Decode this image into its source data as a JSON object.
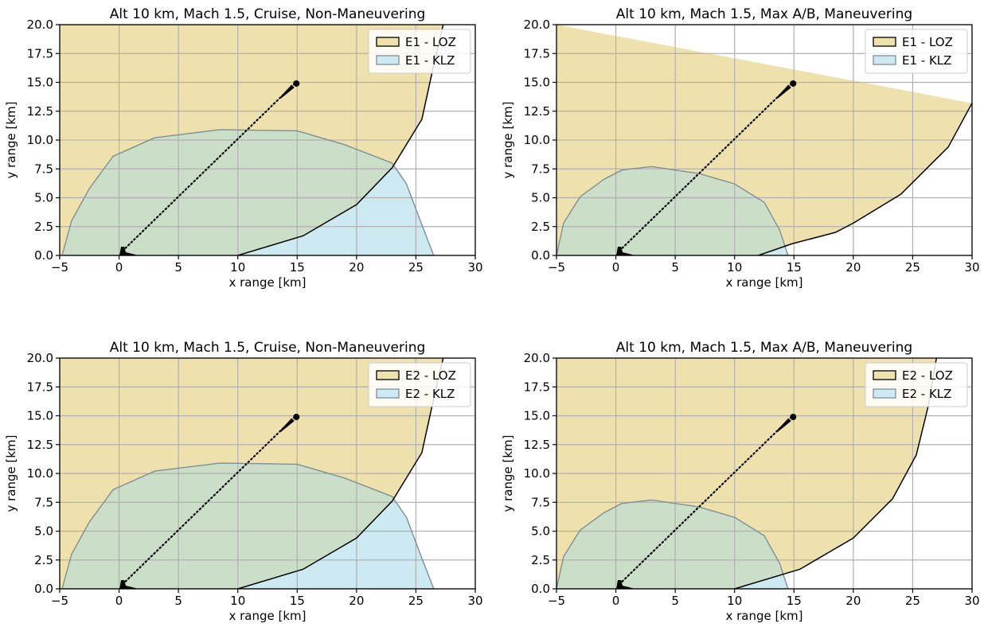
{
  "colors": {
    "loz_fill": "#efe1ad",
    "loz_edge": "#000000",
    "klz_fill": "#cde9f1",
    "klz_edge": "#7f8f95",
    "overlap_fill": "#cadec8",
    "grid": "#b0b0b0",
    "trajectory": "#000000"
  },
  "chart_data": [
    {
      "type": "area",
      "title": "Alt 10 km, Mach 1.5, Cruise, Non-Maneuvering",
      "xlabel": "x range [km]",
      "ylabel": "y range [km]",
      "xlim": [
        -5,
        30
      ],
      "ylim": [
        0,
        20
      ],
      "xticks": [
        -5,
        0,
        5,
        10,
        15,
        20,
        25,
        30
      ],
      "xtick_labels": [
        "−5",
        "0",
        "5",
        "10",
        "15",
        "20",
        "25",
        "30"
      ],
      "yticks": [
        0,
        2.5,
        5,
        7.5,
        10,
        12.5,
        15,
        17.5,
        20
      ],
      "ytick_labels": [
        "0.0",
        "2.5",
        "5.0",
        "7.5",
        "10.0",
        "12.5",
        "15.0",
        "17.5",
        "20.0"
      ],
      "grid": true,
      "legend_position": "top-right",
      "series": [
        {
          "name": "E1 - LOZ",
          "role": "loz",
          "inner_boundary": [
            [
              10,
              0
            ],
            [
              15.5,
              1.7
            ],
            [
              20,
              4.4
            ],
            [
              23,
              7.6
            ],
            [
              25.5,
              11.8
            ],
            [
              26.5,
              16.5
            ],
            [
              27.3,
              20
            ]
          ]
        },
        {
          "name": "E1 - KLZ",
          "role": "klz",
          "boundary": [
            [
              -4.8,
              0
            ],
            [
              -4,
              3
            ],
            [
              -2.5,
              5.8
            ],
            [
              -0.5,
              8.6
            ],
            [
              3,
              10.2
            ],
            [
              8.5,
              10.9
            ],
            [
              15,
              10.8
            ],
            [
              19,
              9.6
            ],
            [
              23,
              8.0
            ],
            [
              24.2,
              6.2
            ],
            [
              25.3,
              3.2
            ],
            [
              26.5,
              0
            ]
          ]
        }
      ],
      "trajectory": {
        "from": [
          0.3,
          0.4
        ],
        "to": [
          14.8,
          14.9
        ]
      }
    },
    {
      "type": "area",
      "title": "Alt 10 km, Mach 1.5, Max A/B, Maneuvering",
      "xlabel": "x range [km]",
      "ylabel": "y range [km]",
      "xlim": [
        -5,
        30
      ],
      "ylim": [
        0,
        20
      ],
      "xticks": [
        -5,
        0,
        5,
        10,
        15,
        20,
        25,
        30
      ],
      "xtick_labels": [
        "−5",
        "0",
        "5",
        "10",
        "15",
        "20",
        "25",
        "30"
      ],
      "yticks": [
        0,
        2.5,
        5,
        7.5,
        10,
        12.5,
        15,
        17.5,
        20
      ],
      "ytick_labels": [
        "0.0",
        "2.5",
        "5.0",
        "7.5",
        "10.0",
        "12.5",
        "15.0",
        "17.5",
        "20.0"
      ],
      "grid": true,
      "legend_position": "top-right",
      "series": [
        {
          "name": "E1 - LOZ",
          "role": "loz",
          "inner_boundary": [
            [
              12,
              0
            ],
            [
              14.8,
              1.0
            ],
            [
              18.5,
              2.0
            ],
            [
              20,
              2.8
            ],
            [
              24,
              5.3
            ],
            [
              28,
              9.4
            ],
            [
              30,
              13.2
            ]
          ]
        },
        {
          "name": "E1 - KLZ",
          "role": "klz",
          "boundary": [
            [
              -5,
              0
            ],
            [
              -4.4,
              2.8
            ],
            [
              -3,
              5.1
            ],
            [
              -1,
              6.6
            ],
            [
              0.5,
              7.4
            ],
            [
              3,
              7.7
            ],
            [
              7,
              7.1
            ],
            [
              10,
              6.2
            ],
            [
              12.5,
              4.6
            ],
            [
              13.8,
              2.2
            ],
            [
              14.5,
              0
            ]
          ]
        }
      ],
      "trajectory": {
        "from": [
          0.3,
          0.4
        ],
        "to": [
          14.8,
          14.9
        ]
      }
    },
    {
      "type": "area",
      "title": "Alt 10 km, Mach 1.5, Cruise, Non-Maneuvering",
      "xlabel": "x range [km]",
      "ylabel": "y range [km]",
      "xlim": [
        -5,
        30
      ],
      "ylim": [
        0,
        20
      ],
      "xticks": [
        -5,
        0,
        5,
        10,
        15,
        20,
        25,
        30
      ],
      "xtick_labels": [
        "−5",
        "0",
        "5",
        "10",
        "15",
        "20",
        "25",
        "30"
      ],
      "yticks": [
        0,
        2.5,
        5,
        7.5,
        10,
        12.5,
        15,
        17.5,
        20
      ],
      "ytick_labels": [
        "0.0",
        "2.5",
        "5.0",
        "7.5",
        "10.0",
        "12.5",
        "15.0",
        "17.5",
        "20.0"
      ],
      "grid": true,
      "legend_position": "top-right",
      "series": [
        {
          "name": "E2 - LOZ",
          "role": "loz",
          "inner_boundary": [
            [
              10,
              0
            ],
            [
              15.5,
              1.7
            ],
            [
              20,
              4.4
            ],
            [
              23,
              7.6
            ],
            [
              25.5,
              11.8
            ],
            [
              26.5,
              16.5
            ],
            [
              27.3,
              20
            ]
          ]
        },
        {
          "name": "E2 - KLZ",
          "role": "klz",
          "boundary": [
            [
              -4.8,
              0
            ],
            [
              -4,
              3
            ],
            [
              -2.5,
              5.8
            ],
            [
              -0.5,
              8.6
            ],
            [
              3,
              10.2
            ],
            [
              8.5,
              10.9
            ],
            [
              15,
              10.8
            ],
            [
              19,
              9.6
            ],
            [
              23,
              8.0
            ],
            [
              24.2,
              6.2
            ],
            [
              25.3,
              3.2
            ],
            [
              26.5,
              0
            ]
          ]
        }
      ],
      "trajectory": {
        "from": [
          0.3,
          0.4
        ],
        "to": [
          14.8,
          14.9
        ]
      }
    },
    {
      "type": "area",
      "title": "Alt 10 km, Mach 1.5, Max A/B, Maneuvering",
      "xlabel": "x range [km]",
      "ylabel": "y range [km]",
      "xlim": [
        -5,
        30
      ],
      "ylim": [
        0,
        20
      ],
      "xticks": [
        -5,
        0,
        5,
        10,
        15,
        20,
        25,
        30
      ],
      "xtick_labels": [
        "−5",
        "0",
        "5",
        "10",
        "15",
        "20",
        "25",
        "30"
      ],
      "yticks": [
        0,
        2.5,
        5,
        7.5,
        10,
        12.5,
        15,
        17.5,
        20
      ],
      "ytick_labels": [
        "0.0",
        "2.5",
        "5.0",
        "7.5",
        "10.0",
        "12.5",
        "15.0",
        "17.5",
        "20.0"
      ],
      "grid": true,
      "legend_position": "top-right",
      "series": [
        {
          "name": "E2 - LOZ",
          "role": "loz",
          "inner_boundary": [
            [
              10,
              0
            ],
            [
              15.5,
              1.7
            ],
            [
              20,
              4.4
            ],
            [
              23.3,
              7.8
            ],
            [
              25.3,
              11.6
            ],
            [
              26.3,
              15.8
            ],
            [
              27,
              20
            ]
          ]
        },
        {
          "name": "E2 - KLZ",
          "role": "klz",
          "boundary": [
            [
              -5,
              0
            ],
            [
              -4.4,
              2.8
            ],
            [
              -3,
              5.1
            ],
            [
              -1,
              6.6
            ],
            [
              0.5,
              7.4
            ],
            [
              3,
              7.7
            ],
            [
              7,
              7.1
            ],
            [
              10,
              6.2
            ],
            [
              12.5,
              4.6
            ],
            [
              13.8,
              2.2
            ],
            [
              14.5,
              0
            ]
          ]
        }
      ],
      "trajectory": {
        "from": [
          0.3,
          0.4
        ],
        "to": [
          14.8,
          14.9
        ]
      }
    }
  ]
}
